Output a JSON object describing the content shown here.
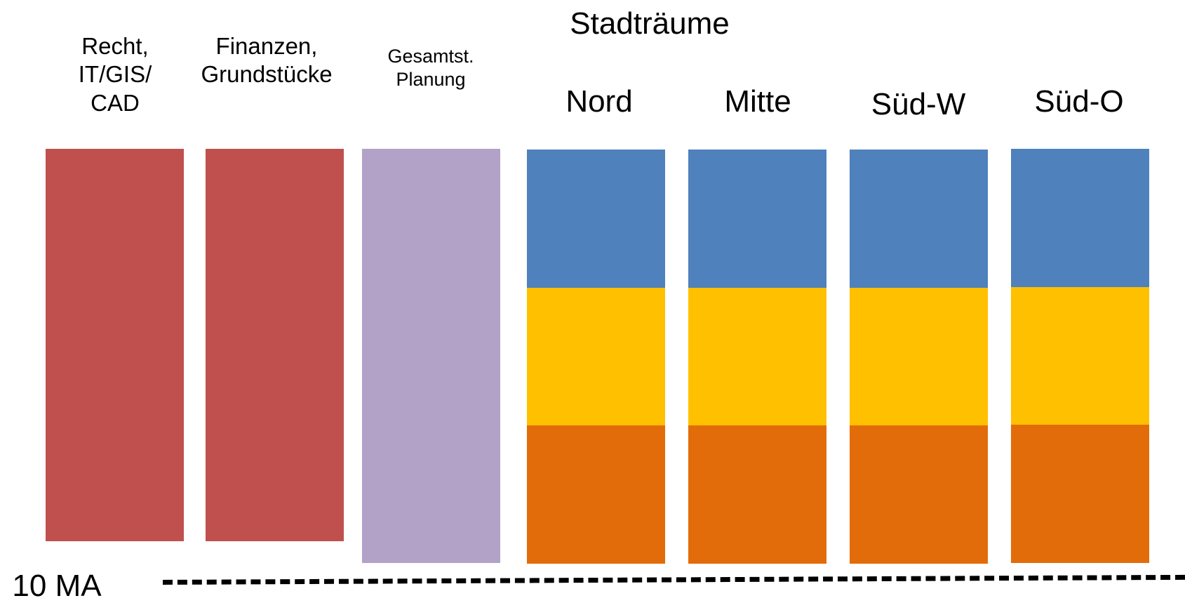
{
  "colors": {
    "red": "#C0504D",
    "purple": "#B2A2C7",
    "blue": "#4F81BD",
    "yellow": "#FFC000",
    "orange": "#E36C0A",
    "dash": "#000000"
  },
  "units": [
    {
      "lines": [
        "Recht,",
        "IT/GIS/",
        "CAD"
      ],
      "color": "red"
    },
    {
      "lines": [
        "Finanzen,",
        "Grundstücke"
      ],
      "color": "red"
    },
    {
      "lines": [
        "Gesamtst.",
        "Planung"
      ],
      "color": "purple"
    }
  ],
  "stadtraeume": {
    "title": "Stadträume",
    "districts": [
      {
        "label": "Nord"
      },
      {
        "label": "Mitte"
      },
      {
        "label": "Süd-W"
      },
      {
        "label": "Süd-O"
      }
    ],
    "layers": [
      "blue",
      "yellow",
      "orange"
    ]
  },
  "scale": {
    "label": "10 MA"
  }
}
